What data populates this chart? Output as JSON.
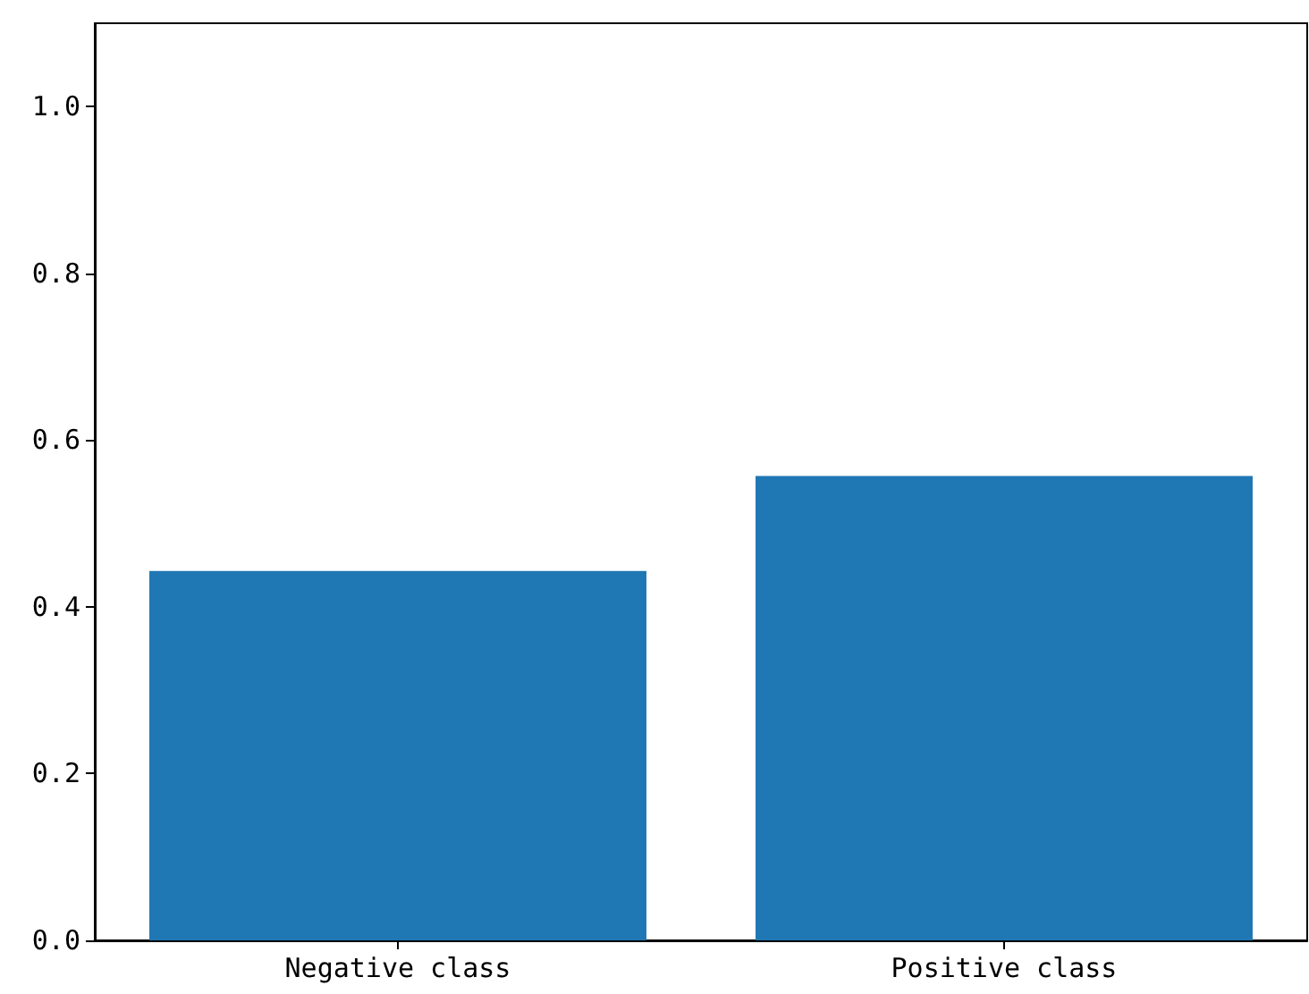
{
  "chart_data": {
    "type": "bar",
    "categories": [
      "Negative class",
      "Positive class"
    ],
    "values": [
      0.443,
      0.557
    ],
    "color": "#1f77b4",
    "ylim": [
      0,
      1.1
    ],
    "yticks": [
      {
        "value": 0,
        "label": "0.0"
      },
      {
        "value": 0.2,
        "label": "0.2"
      },
      {
        "value": 0.4,
        "label": "0.4"
      },
      {
        "value": 0.6,
        "label": "0.6"
      },
      {
        "value": 0.8,
        "label": "0.8"
      },
      {
        "value": 1.0,
        "label": "1.0"
      }
    ],
    "data_labels": false
  }
}
